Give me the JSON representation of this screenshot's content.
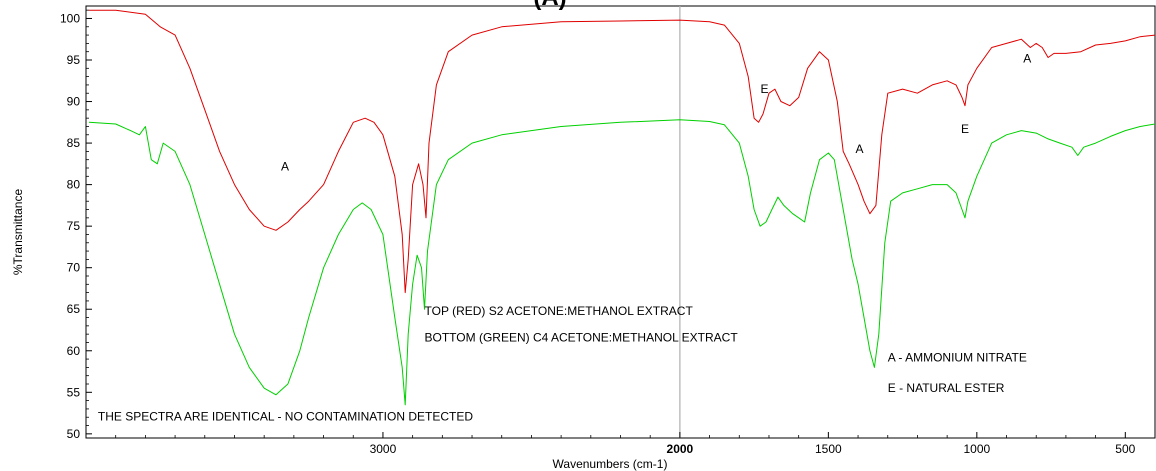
{
  "chart_data": {
    "type": "line",
    "title": "(A)",
    "xlabel": "Wavenumbers (cm-1)",
    "ylabel": "%Transmittance",
    "xlim": [
      4000,
      400
    ],
    "ylim": [
      49.5,
      101.5
    ],
    "x_ticks": [
      3000,
      2000,
      1500,
      1000,
      500
    ],
    "y_ticks": [
      50,
      55,
      60,
      65,
      70,
      75,
      80,
      85,
      90,
      95,
      100
    ],
    "grid": false,
    "marker_line_x": 2000,
    "series": [
      {
        "name": "TOP (RED) S2 ACETONE:METHANOL EXTRACT",
        "color": "#e00000",
        "points": [
          [
            3990,
            101
          ],
          [
            3900,
            101
          ],
          [
            3800,
            100.5
          ],
          [
            3750,
            99
          ],
          [
            3700,
            98
          ],
          [
            3650,
            94
          ],
          [
            3600,
            89
          ],
          [
            3550,
            84
          ],
          [
            3500,
            80
          ],
          [
            3450,
            77
          ],
          [
            3400,
            75
          ],
          [
            3360,
            74.5
          ],
          [
            3320,
            75.5
          ],
          [
            3280,
            77
          ],
          [
            3250,
            78
          ],
          [
            3200,
            80
          ],
          [
            3150,
            84
          ],
          [
            3100,
            87.5
          ],
          [
            3060,
            88
          ],
          [
            3030,
            87.5
          ],
          [
            3000,
            86
          ],
          [
            2960,
            81
          ],
          [
            2935,
            74
          ],
          [
            2925,
            67
          ],
          [
            2915,
            71
          ],
          [
            2900,
            80
          ],
          [
            2880,
            82.5
          ],
          [
            2865,
            80
          ],
          [
            2855,
            76
          ],
          [
            2845,
            85
          ],
          [
            2820,
            92
          ],
          [
            2780,
            96
          ],
          [
            2700,
            98
          ],
          [
            2600,
            99
          ],
          [
            2400,
            99.6
          ],
          [
            2200,
            99.7
          ],
          [
            2000,
            99.8
          ],
          [
            1900,
            99.6
          ],
          [
            1850,
            99.2
          ],
          [
            1800,
            97
          ],
          [
            1770,
            93
          ],
          [
            1750,
            88
          ],
          [
            1735,
            87.5
          ],
          [
            1720,
            88.5
          ],
          [
            1700,
            91
          ],
          [
            1680,
            91.5
          ],
          [
            1660,
            90
          ],
          [
            1630,
            89.5
          ],
          [
            1600,
            90.5
          ],
          [
            1570,
            94
          ],
          [
            1530,
            96
          ],
          [
            1500,
            95
          ],
          [
            1470,
            90
          ],
          [
            1450,
            84
          ],
          [
            1430,
            82.5
          ],
          [
            1400,
            80
          ],
          [
            1380,
            78
          ],
          [
            1360,
            76.5
          ],
          [
            1340,
            77.5
          ],
          [
            1320,
            86
          ],
          [
            1300,
            91
          ],
          [
            1250,
            91.5
          ],
          [
            1200,
            91
          ],
          [
            1150,
            92
          ],
          [
            1100,
            92.5
          ],
          [
            1070,
            92
          ],
          [
            1050,
            90.5
          ],
          [
            1040,
            89.5
          ],
          [
            1030,
            92
          ],
          [
            1000,
            94
          ],
          [
            950,
            96.5
          ],
          [
            900,
            97
          ],
          [
            850,
            97.5
          ],
          [
            820,
            96.5
          ],
          [
            800,
            97
          ],
          [
            780,
            96.5
          ],
          [
            760,
            95.3
          ],
          [
            740,
            95.8
          ],
          [
            700,
            95.8
          ],
          [
            650,
            96
          ],
          [
            600,
            96.8
          ],
          [
            550,
            97
          ],
          [
            500,
            97.3
          ],
          [
            450,
            97.8
          ],
          [
            400,
            98
          ]
        ]
      },
      {
        "name": "BOTTOM (GREEN) C4 ACETONE:METHANOL EXTRACT",
        "color": "#00d000",
        "points": [
          [
            3990,
            87.5
          ],
          [
            3900,
            87.3
          ],
          [
            3850,
            86.5
          ],
          [
            3820,
            86
          ],
          [
            3800,
            87
          ],
          [
            3780,
            83
          ],
          [
            3760,
            82.5
          ],
          [
            3740,
            85
          ],
          [
            3700,
            84
          ],
          [
            3650,
            80
          ],
          [
            3600,
            74
          ],
          [
            3550,
            68
          ],
          [
            3500,
            62
          ],
          [
            3450,
            58
          ],
          [
            3400,
            55.5
          ],
          [
            3360,
            54.7
          ],
          [
            3320,
            56
          ],
          [
            3280,
            60
          ],
          [
            3250,
            64
          ],
          [
            3200,
            70
          ],
          [
            3150,
            74
          ],
          [
            3100,
            77
          ],
          [
            3070,
            77.8
          ],
          [
            3040,
            77
          ],
          [
            3000,
            74
          ],
          [
            2960,
            64
          ],
          [
            2935,
            58
          ],
          [
            2925,
            53.5
          ],
          [
            2915,
            62
          ],
          [
            2900,
            68
          ],
          [
            2885,
            71.5
          ],
          [
            2870,
            70
          ],
          [
            2860,
            65
          ],
          [
            2850,
            72
          ],
          [
            2820,
            80
          ],
          [
            2780,
            83
          ],
          [
            2700,
            85
          ],
          [
            2600,
            86
          ],
          [
            2500,
            86.5
          ],
          [
            2400,
            87
          ],
          [
            2200,
            87.5
          ],
          [
            2000,
            87.8
          ],
          [
            1900,
            87.6
          ],
          [
            1850,
            87.2
          ],
          [
            1800,
            85
          ],
          [
            1770,
            81
          ],
          [
            1750,
            77
          ],
          [
            1730,
            75
          ],
          [
            1710,
            75.5
          ],
          [
            1690,
            77
          ],
          [
            1670,
            78.5
          ],
          [
            1650,
            77.5
          ],
          [
            1620,
            76.5
          ],
          [
            1600,
            76
          ],
          [
            1580,
            75.5
          ],
          [
            1560,
            79
          ],
          [
            1530,
            83
          ],
          [
            1500,
            83.8
          ],
          [
            1480,
            83
          ],
          [
            1450,
            77
          ],
          [
            1420,
            71
          ],
          [
            1400,
            68
          ],
          [
            1380,
            64
          ],
          [
            1360,
            60
          ],
          [
            1345,
            58
          ],
          [
            1330,
            62
          ],
          [
            1310,
            73
          ],
          [
            1290,
            78
          ],
          [
            1250,
            79
          ],
          [
            1200,
            79.5
          ],
          [
            1150,
            80
          ],
          [
            1100,
            80
          ],
          [
            1070,
            79
          ],
          [
            1050,
            77
          ],
          [
            1040,
            76
          ],
          [
            1030,
            78
          ],
          [
            1000,
            81
          ],
          [
            950,
            85
          ],
          [
            900,
            86
          ],
          [
            850,
            86.5
          ],
          [
            800,
            86.2
          ],
          [
            760,
            85.5
          ],
          [
            720,
            85
          ],
          [
            680,
            84.5
          ],
          [
            660,
            83.5
          ],
          [
            640,
            84.5
          ],
          [
            600,
            85
          ],
          [
            550,
            85.8
          ],
          [
            500,
            86.5
          ],
          [
            450,
            87
          ],
          [
            400,
            87.3
          ]
        ]
      }
    ],
    "annotations": [
      {
        "text": "A",
        "x": 3330,
        "y": 82.2
      },
      {
        "text": "E",
        "x": 1715,
        "y": 91.5
      },
      {
        "text": "A",
        "x": 1395,
        "y": 84.3
      },
      {
        "text": "E",
        "x": 1040,
        "y": 86.7
      },
      {
        "text": "A",
        "x": 830,
        "y": 95.2
      },
      {
        "text": "TOP (RED) S2 ACETONE:METHANOL EXTRACT",
        "x": 2860,
        "y": 64.8
      },
      {
        "text": "BOTTOM (GREEN) C4 ACETONE:METHANOL EXTRACT",
        "x": 2860,
        "y": 61.6
      },
      {
        "text": "A - AMMONIUM NITRATE",
        "x": 1300,
        "y": 59.2
      },
      {
        "text": "E - NATURAL ESTER",
        "x": 1300,
        "y": 55.5
      },
      {
        "text": "THE SPECTRA ARE IDENTICAL - NO CONTAMINATION DETECTED",
        "x": 3960,
        "y": 52.1
      }
    ]
  }
}
